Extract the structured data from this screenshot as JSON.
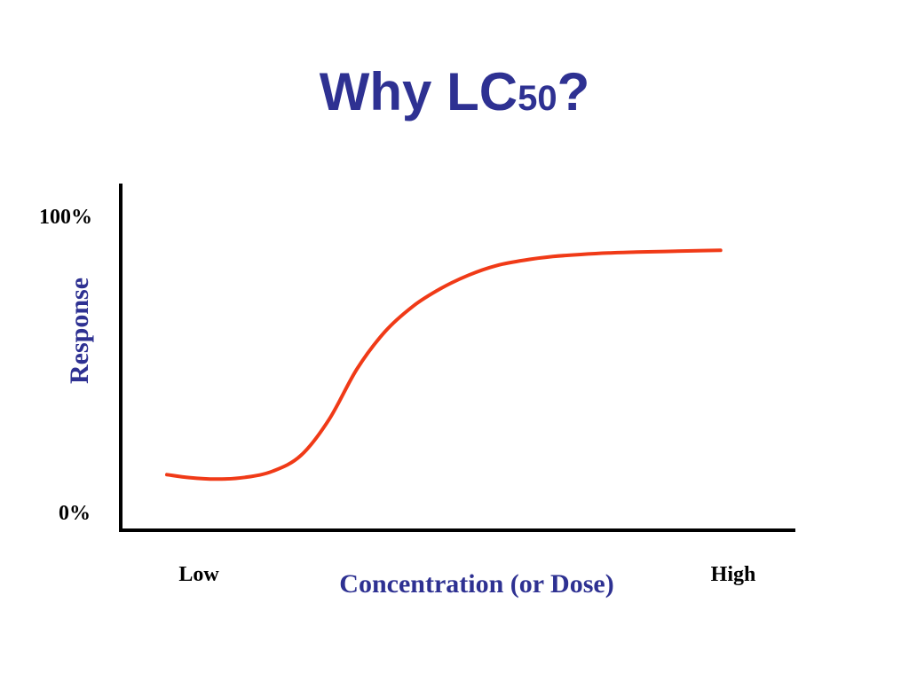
{
  "slide": {
    "title_main": "Why LC",
    "title_sub": "50",
    "title_end": "?"
  },
  "colors": {
    "title": "#2e3192",
    "axis_title": "#2e3192",
    "curve": "#f03a17",
    "axis": "#000000"
  },
  "chart_data": {
    "type": "line",
    "title": "",
    "xlabel": "Concentration (or Dose)",
    "ylabel": "Response",
    "x_tick_labels": [
      "Low",
      "High"
    ],
    "y_tick_labels": [
      "0%",
      "100%"
    ],
    "xlim": [
      0,
      100
    ],
    "ylim": [
      0,
      100
    ],
    "grid": false,
    "legend": "none",
    "series": [
      {
        "x": [
          0,
          4,
          9,
          14,
          19,
          24,
          29,
          34,
          39,
          44,
          49,
          54,
          59,
          64,
          69,
          74,
          79,
          84,
          89,
          94,
          99
        ],
        "y": [
          14.5,
          13.5,
          13,
          13.6,
          15.7,
          21,
          33,
          50,
          62.5,
          71,
          77,
          81.5,
          84.7,
          86.5,
          87.7,
          88.4,
          88.9,
          89.2,
          89.4,
          89.6,
          89.8
        ]
      }
    ]
  }
}
